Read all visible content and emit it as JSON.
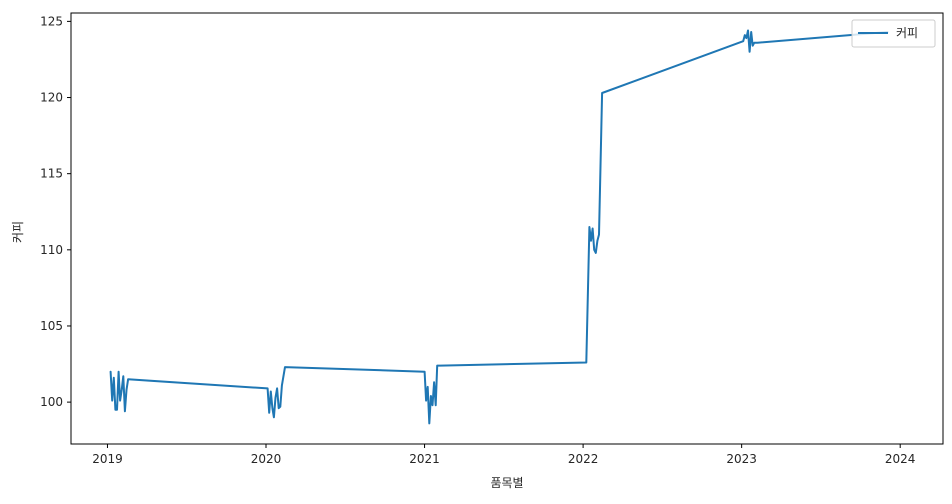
{
  "chart_data": {
    "type": "line",
    "xlabel": "품목별",
    "ylabel": "커피",
    "xlim": [
      2018.77,
      2024.27
    ],
    "ylim": [
      97.25,
      125.55
    ],
    "x_ticks": [
      2019,
      2020,
      2021,
      2022,
      2023,
      2024
    ],
    "x_tick_labels": [
      "2019",
      "2020",
      "2021",
      "2022",
      "2023",
      "2024"
    ],
    "y_ticks": [
      100,
      105,
      110,
      115,
      120,
      125
    ],
    "y_tick_labels": [
      "100",
      "105",
      "110",
      "115",
      "120",
      "125"
    ],
    "grid": false,
    "legend_position": "upper right",
    "series": [
      {
        "name": "커피",
        "color": "#1f77b4",
        "x": [
          2019.02,
          2019.03,
          2019.04,
          2019.05,
          2019.06,
          2019.07,
          2019.08,
          2019.09,
          2019.1,
          2019.11,
          2019.12,
          2019.13,
          2020.01,
          2020.02,
          2020.03,
          2020.04,
          2020.05,
          2020.06,
          2020.07,
          2020.08,
          2020.09,
          2020.1,
          2020.12,
          2021.0,
          2021.01,
          2021.02,
          2021.03,
          2021.04,
          2021.05,
          2021.06,
          2021.07,
          2021.08,
          2021.09,
          2021.1,
          2022.02,
          2022.04,
          2022.05,
          2022.06,
          2022.07,
          2022.08,
          2022.09,
          2022.1,
          2022.12,
          2023.01,
          2023.02,
          2023.03,
          2023.04,
          2023.05,
          2023.06,
          2023.07,
          2023.08,
          2023.1,
          2023.92
        ],
        "y": [
          102.0,
          100.1,
          101.6,
          99.5,
          99.5,
          102.0,
          100.1,
          100.8,
          101.7,
          99.4,
          100.8,
          101.5,
          100.9,
          99.3,
          100.7,
          99.6,
          99.0,
          100.3,
          100.9,
          99.6,
          99.7,
          101.1,
          102.3,
          102.0,
          100.1,
          101.0,
          98.6,
          100.4,
          99.8,
          101.3,
          99.8,
          102.4,
          102.4,
          102.4,
          102.6,
          111.5,
          110.6,
          111.4,
          110.0,
          109.8,
          110.6,
          111.0,
          120.3,
          123.7,
          124.1,
          123.9,
          124.4,
          123.0,
          124.3,
          123.4,
          123.6,
          123.6,
          124.3
        ]
      }
    ]
  }
}
